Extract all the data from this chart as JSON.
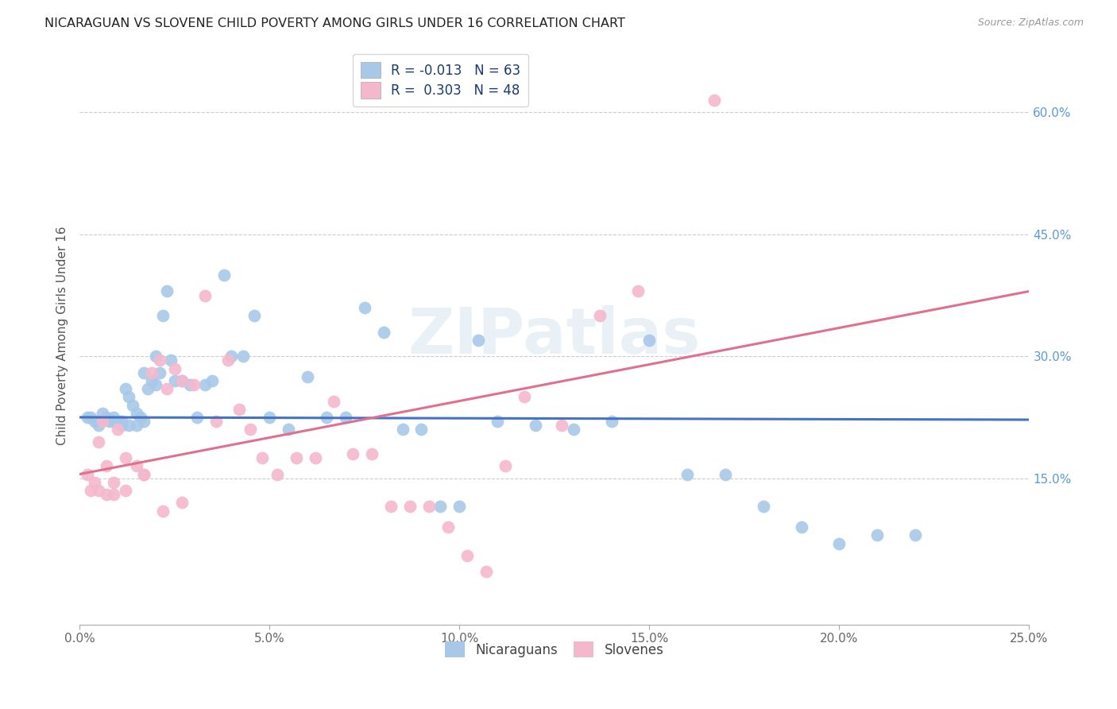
{
  "title": "NICARAGUAN VS SLOVENE CHILD POVERTY AMONG GIRLS UNDER 16 CORRELATION CHART",
  "source": "Source: ZipAtlas.com",
  "ylabel": "Child Poverty Among Girls Under 16",
  "xlabel_ticks": [
    "0.0%",
    "5.0%",
    "10.0%",
    "15.0%",
    "20.0%",
    "25.0%"
  ],
  "xlabel_vals": [
    0.0,
    5.0,
    10.0,
    15.0,
    20.0,
    25.0
  ],
  "ylabel_ticks_right": [
    "15.0%",
    "30.0%",
    "45.0%",
    "60.0%"
  ],
  "ylabel_vals_right": [
    15.0,
    30.0,
    45.0,
    60.0
  ],
  "xlim": [
    0.0,
    25.0
  ],
  "ylim": [
    -3.0,
    68.0
  ],
  "blue_color": "#a8c8e8",
  "pink_color": "#f4b8cc",
  "blue_line_color": "#4472c4",
  "pink_line_color": "#e07090",
  "legend_R_blue": "-0.013",
  "legend_N_blue": "63",
  "legend_R_pink": "0.303",
  "legend_N_pink": "48",
  "watermark": "ZIPatlas",
  "blue_scatter_x": [
    0.2,
    0.3,
    0.4,
    0.5,
    0.6,
    0.7,
    0.8,
    0.9,
    1.0,
    1.1,
    1.2,
    1.3,
    1.4,
    1.5,
    1.6,
    1.7,
    1.8,
    1.9,
    2.0,
    2.1,
    2.2,
    2.3,
    2.4,
    2.5,
    2.7,
    2.9,
    3.1,
    3.3,
    3.5,
    3.8,
    4.0,
    4.3,
    4.6,
    5.0,
    5.5,
    6.0,
    6.5,
    7.0,
    7.5,
    8.0,
    8.5,
    9.0,
    9.5,
    10.0,
    10.5,
    11.0,
    12.0,
    13.0,
    14.0,
    15.0,
    16.0,
    17.0,
    18.0,
    19.0,
    20.0,
    21.0,
    22.0,
    0.9,
    1.1,
    1.3,
    1.5,
    1.7,
    2.0
  ],
  "blue_scatter_y": [
    22.5,
    22.5,
    22.0,
    21.5,
    23.0,
    22.5,
    22.0,
    22.5,
    22.0,
    21.5,
    26.0,
    25.0,
    24.0,
    23.0,
    22.5,
    28.0,
    26.0,
    27.0,
    30.0,
    28.0,
    35.0,
    38.0,
    29.5,
    27.0,
    27.0,
    26.5,
    22.5,
    26.5,
    27.0,
    40.0,
    30.0,
    30.0,
    35.0,
    22.5,
    21.0,
    27.5,
    22.5,
    22.5,
    36.0,
    33.0,
    21.0,
    21.0,
    11.5,
    11.5,
    32.0,
    22.0,
    21.5,
    21.0,
    22.0,
    32.0,
    15.5,
    15.5,
    11.5,
    9.0,
    7.0,
    8.0,
    8.0,
    22.0,
    22.0,
    21.5,
    21.5,
    22.0,
    26.5
  ],
  "pink_scatter_x": [
    0.2,
    0.4,
    0.5,
    0.6,
    0.7,
    0.9,
    1.0,
    1.2,
    1.5,
    1.7,
    1.9,
    2.1,
    2.3,
    2.5,
    2.7,
    3.0,
    3.3,
    3.6,
    3.9,
    4.2,
    4.5,
    4.8,
    5.2,
    5.7,
    6.2,
    6.7,
    7.2,
    7.7,
    8.2,
    8.7,
    9.2,
    9.7,
    10.2,
    10.7,
    11.2,
    11.7,
    12.7,
    13.7,
    14.7,
    16.7,
    0.3,
    0.5,
    0.7,
    0.9,
    1.2,
    1.7,
    2.2,
    2.7
  ],
  "pink_scatter_y": [
    15.5,
    14.5,
    19.5,
    22.0,
    16.5,
    14.5,
    21.0,
    17.5,
    16.5,
    15.5,
    28.0,
    29.5,
    26.0,
    28.5,
    27.0,
    26.5,
    37.5,
    22.0,
    29.5,
    23.5,
    21.0,
    17.5,
    15.5,
    17.5,
    17.5,
    24.5,
    18.0,
    18.0,
    11.5,
    11.5,
    11.5,
    9.0,
    5.5,
    3.5,
    16.5,
    25.0,
    21.5,
    35.0,
    38.0,
    61.5,
    13.5,
    13.5,
    13.0,
    13.0,
    13.5,
    15.5,
    11.0,
    12.0
  ],
  "blue_trend_x": [
    0.0,
    25.0
  ],
  "blue_trend_y": [
    22.5,
    22.2
  ],
  "pink_trend_x": [
    0.0,
    25.0
  ],
  "pink_trend_y": [
    15.5,
    38.0
  ]
}
